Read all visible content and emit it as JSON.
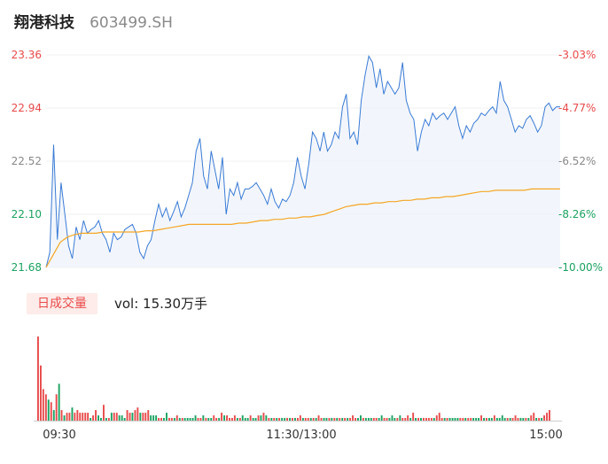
{
  "stock": {
    "name": "翔港科技",
    "code": "603499.SH"
  },
  "volume_panel": {
    "tag": "日成交量",
    "vol_label": "vol: 15.30万手"
  },
  "colors": {
    "price": "#3a7bd5",
    "avg": "#f5a623",
    "up": "#e84a4a",
    "down": "#1aa260",
    "neutral": "#888888"
  },
  "chart_data": [
    {
      "type": "line",
      "y_ticks": [
        "23.36",
        "22.94",
        "22.52",
        "22.10",
        "21.68"
      ],
      "y_right_ticks": [
        "-3.03%",
        "-4.77%",
        "-6.52%",
        "-8.26%",
        "-10.00%"
      ],
      "x_ticks": [
        "09:30",
        "11:30/13:00",
        "15:00"
      ],
      "ylim": [
        21.68,
        23.36
      ],
      "series": [
        {
          "values": [
            21.68,
            21.8,
            22.65,
            21.9,
            22.35,
            22.1,
            21.85,
            21.75,
            22.0,
            21.9,
            22.05,
            21.95,
            21.98,
            22.0,
            22.05,
            21.95,
            21.9,
            21.8,
            21.95,
            21.9,
            21.92,
            21.98,
            22.0,
            22.02,
            21.95,
            21.8,
            21.75,
            21.85,
            21.9,
            22.05,
            22.18,
            22.08,
            22.15,
            22.05,
            22.12,
            22.2,
            22.08,
            22.15,
            22.25,
            22.35,
            22.6,
            22.7,
            22.4,
            22.3,
            22.6,
            22.45,
            22.3,
            22.55,
            22.1,
            22.3,
            22.25,
            22.35,
            22.22,
            22.3,
            22.3,
            22.32,
            22.35,
            22.3,
            22.25,
            22.18,
            22.3,
            22.2,
            22.15,
            22.22,
            22.2,
            22.25,
            22.35,
            22.55,
            22.4,
            22.3,
            22.5,
            22.75,
            22.7,
            22.6,
            22.75,
            22.6,
            22.65,
            22.75,
            22.7,
            22.95,
            23.05,
            22.7,
            22.75,
            22.65,
            23.0,
            23.2,
            23.35,
            23.3,
            23.1,
            23.25,
            23.05,
            23.15,
            23.1,
            23.05,
            23.1,
            23.3,
            23.0,
            22.9,
            22.85,
            22.6,
            22.75,
            22.85,
            22.8,
            22.9,
            22.85,
            22.88,
            22.9,
            22.85,
            22.9,
            22.95,
            22.8,
            22.7,
            22.8,
            22.75,
            22.82,
            22.85,
            22.9,
            22.88,
            22.92,
            22.95,
            22.9,
            23.15,
            23.0,
            22.95,
            22.85,
            22.75,
            22.8,
            22.78,
            22.85,
            22.88,
            22.82,
            22.75,
            22.8,
            22.95,
            22.98,
            22.92,
            22.95,
            22.95
          ],
          "color": "#3a7bd5"
        },
        {
          "values": [
            21.68,
            21.78,
            21.88,
            21.92,
            21.94,
            21.95,
            21.95,
            21.95,
            21.96,
            21.96,
            21.96,
            21.96,
            21.96,
            21.96,
            21.97,
            21.97,
            21.98,
            21.99,
            22.0,
            22.01,
            22.02,
            22.02,
            22.02,
            22.02,
            22.02,
            22.02,
            22.02,
            22.03,
            22.03,
            22.04,
            22.05,
            22.05,
            22.06,
            22.06,
            22.07,
            22.07,
            22.08,
            22.08,
            22.09,
            22.1,
            22.12,
            22.14,
            22.16,
            22.17,
            22.18,
            22.18,
            22.19,
            22.19,
            22.2,
            22.2,
            22.21,
            22.21,
            22.22,
            22.22,
            22.23,
            22.23,
            22.24,
            22.24,
            22.25,
            22.26,
            22.27,
            22.28,
            22.28,
            22.29,
            22.29,
            22.29,
            22.29,
            22.29,
            22.3,
            22.3,
            22.3,
            22.3,
            22.3
          ],
          "color": "#f5a623"
        }
      ]
    },
    {
      "type": "bar",
      "values": [
        32,
        21,
        12,
        10,
        8,
        7,
        4,
        10,
        14,
        4,
        2,
        3,
        3,
        5,
        3,
        4,
        3,
        3,
        3,
        3,
        1,
        2,
        4,
        2,
        1,
        6,
        1,
        1,
        3,
        3,
        3,
        2,
        2,
        1,
        4,
        3,
        3,
        4,
        5,
        3,
        3,
        3,
        4,
        2,
        2,
        2,
        1,
        1,
        1,
        3,
        1,
        1,
        1,
        2,
        1,
        1,
        1,
        1,
        1,
        1,
        2,
        1,
        1,
        2,
        1,
        1,
        1,
        2,
        1,
        1,
        3,
        2,
        2,
        1,
        1,
        2,
        1,
        1,
        2,
        1,
        1,
        2,
        1,
        1,
        2,
        2,
        3,
        2,
        1,
        1,
        1,
        1,
        1,
        1,
        1,
        1,
        1,
        1,
        1,
        1,
        2,
        1,
        1,
        1,
        1,
        1,
        1,
        2,
        1,
        1,
        1,
        1,
        1,
        1,
        1,
        1,
        1,
        1,
        1,
        1,
        2,
        1,
        1,
        2,
        1,
        1,
        1,
        1,
        1,
        1,
        1,
        2,
        1,
        1,
        1,
        2,
        1,
        1,
        2,
        1,
        1,
        2,
        1,
        3,
        1,
        1,
        1,
        1,
        1,
        1,
        1,
        1,
        2,
        3,
        1,
        1,
        1,
        1,
        1,
        1,
        1,
        1,
        1,
        1,
        1,
        1,
        1,
        1,
        1,
        2,
        1,
        1,
        1,
        1,
        2,
        1,
        1,
        2,
        1,
        1,
        1,
        1,
        2,
        1,
        1,
        1,
        1,
        1,
        2,
        3,
        1,
        1,
        1,
        2,
        3,
        4
      ],
      "directions": [
        "u",
        "u",
        "u",
        "u",
        "d",
        "u",
        "d",
        "u",
        "d",
        "u",
        "d",
        "u",
        "u",
        "d",
        "u",
        "u",
        "u",
        "u",
        "u",
        "u",
        "d",
        "u",
        "u",
        "d",
        "d",
        "u",
        "d",
        "u",
        "d",
        "u",
        "u",
        "d",
        "d",
        "d",
        "u",
        "u",
        "d",
        "u",
        "u",
        "d",
        "u",
        "u",
        "u",
        "d",
        "d",
        "d",
        "u",
        "u",
        "d",
        "d",
        "u",
        "u",
        "d",
        "u",
        "d",
        "u",
        "d",
        "d",
        "d",
        "d",
        "d",
        "u",
        "u",
        "d",
        "u",
        "d",
        "d",
        "u",
        "u",
        "d",
        "u",
        "d",
        "u",
        "u",
        "u",
        "u",
        "d",
        "u",
        "d",
        "d",
        "d",
        "u",
        "d",
        "d",
        "u",
        "d",
        "u",
        "d",
        "u",
        "d",
        "u",
        "d",
        "u",
        "d",
        "d",
        "u",
        "d",
        "u",
        "d",
        "u",
        "u",
        "d",
        "u",
        "u",
        "d",
        "u",
        "d",
        "u",
        "u",
        "d",
        "d",
        "u",
        "d",
        "u",
        "d",
        "u",
        "d",
        "u",
        "d",
        "u",
        "u",
        "u",
        "d",
        "d",
        "u",
        "d",
        "d",
        "d",
        "u",
        "u",
        "d",
        "d",
        "u",
        "u",
        "d",
        "d",
        "d",
        "u",
        "d",
        "u",
        "u",
        "u",
        "d",
        "u",
        "d",
        "u",
        "d",
        "u",
        "u",
        "u",
        "u",
        "d",
        "u",
        "u",
        "u",
        "d",
        "u",
        "d",
        "d",
        "d",
        "d",
        "u",
        "u",
        "d",
        "u",
        "u",
        "d",
        "d",
        "d",
        "u",
        "d",
        "u",
        "d",
        "d",
        "u",
        "d",
        "d",
        "d",
        "d",
        "u",
        "d",
        "u",
        "u",
        "u",
        "d",
        "d",
        "u",
        "d",
        "u",
        "u",
        "d",
        "u",
        "d",
        "u",
        "u",
        "u",
        "u",
        "n"
      ]
    }
  ]
}
